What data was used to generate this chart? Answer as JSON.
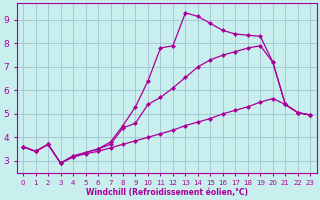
{
  "xlabel": "Windchill (Refroidissement éolien,°C)",
  "bg_color": "#c8eeee",
  "line_color": "#aa0099",
  "grid_color": "#99bbcc",
  "xlim": [
    -0.5,
    23.5
  ],
  "ylim": [
    2.5,
    9.7
  ],
  "xticks": [
    0,
    1,
    2,
    3,
    4,
    5,
    6,
    7,
    8,
    9,
    10,
    11,
    12,
    13,
    14,
    15,
    16,
    17,
    18,
    19,
    20,
    21,
    22,
    23
  ],
  "yticks": [
    3,
    4,
    5,
    6,
    7,
    8,
    9
  ],
  "curve_top_x": [
    0,
    1,
    2,
    3,
    4,
    5,
    6,
    7,
    8,
    9,
    10,
    11,
    12,
    13,
    14,
    15,
    16,
    17,
    18,
    19,
    20,
    21,
    22,
    23
  ],
  "curve_top_y": [
    3.6,
    3.4,
    3.7,
    2.9,
    3.2,
    3.35,
    3.5,
    3.8,
    4.5,
    5.3,
    6.4,
    7.8,
    7.9,
    9.3,
    9.15,
    8.85,
    8.55,
    8.4,
    8.35,
    8.3,
    7.2,
    5.4,
    5.05,
    4.95
  ],
  "curve_mid_x": [
    0,
    1,
    2,
    3,
    4,
    5,
    6,
    7,
    8,
    9,
    10,
    11,
    12,
    13,
    14,
    15,
    16,
    17,
    18,
    19,
    20,
    21,
    22,
    23
  ],
  "curve_mid_y": [
    3.6,
    3.4,
    3.7,
    2.9,
    3.2,
    3.35,
    3.5,
    3.7,
    4.4,
    4.6,
    5.4,
    5.7,
    6.1,
    6.55,
    7.0,
    7.3,
    7.5,
    7.65,
    7.8,
    7.9,
    7.2,
    5.4,
    5.05,
    4.95
  ],
  "curve_bot_x": [
    0,
    1,
    2,
    3,
    4,
    5,
    6,
    7,
    8,
    9,
    10,
    11,
    12,
    13,
    14,
    15,
    16,
    17,
    18,
    19,
    20,
    21,
    22,
    23
  ],
  "curve_bot_y": [
    3.6,
    3.4,
    3.7,
    2.9,
    3.15,
    3.3,
    3.4,
    3.55,
    3.7,
    3.85,
    4.0,
    4.15,
    4.3,
    4.5,
    4.65,
    4.8,
    5.0,
    5.15,
    5.3,
    5.5,
    5.65,
    5.4,
    5.05,
    4.95
  ],
  "marker": "D",
  "markersize": 2.5,
  "linewidth": 0.9
}
